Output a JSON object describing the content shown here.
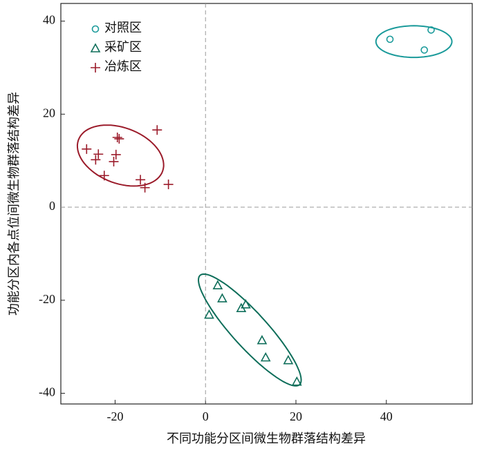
{
  "chart_data": {
    "type": "scatter",
    "x_label": "不同功能分区间微生物群落结构差异",
    "y_label": "功能分区内各点位间微生物群落结构差异",
    "xlim": [
      -32,
      59
    ],
    "ylim": [
      -42.3,
      43.8
    ],
    "xticks": [
      -20,
      0,
      20,
      40
    ],
    "yticks": [
      -40,
      -20,
      0,
      20,
      40
    ],
    "zero_lines": true,
    "legend": "upper left",
    "series": [
      {
        "name": "对照区",
        "color": "#1a9a9a",
        "marker": "circle",
        "x": [
          40.8,
          49.9,
          48.4
        ],
        "values": [
          36.1,
          38.1,
          33.8
        ],
        "ellipse": {
          "cx": 46.1,
          "cy": 35.6,
          "a": 8.4,
          "b": 3.4,
          "angle": 0
        }
      },
      {
        "name": "采矿区",
        "color": "#0e6e5a",
        "marker": "triangle",
        "x": [
          2.7,
          3.7,
          0.8,
          7.9,
          8.9,
          12.5,
          13.3,
          18.3,
          20.2
        ],
        "values": [
          -16.8,
          -19.6,
          -23.1,
          -21.7,
          -20.9,
          -28.6,
          -32.3,
          -32.9,
          -37.5
        ],
        "ellipse": {
          "cx": 9.8,
          "cy": -26.4,
          "a": 16.1,
          "b": 3.8,
          "angle": -46.8
        }
      },
      {
        "name": "冶炼区",
        "color": "#9b1b2a",
        "marker": "plus",
        "x": [
          -26.3,
          -23.7,
          -24.3,
          -19.5,
          -19.1,
          -19.8,
          -20.3,
          -22.4,
          -10.7,
          -14.4,
          -13.4,
          -8.2
        ],
        "values": [
          12.5,
          11.4,
          10.2,
          15.0,
          14.7,
          11.3,
          9.8,
          6.8,
          16.6,
          5.9,
          4.2,
          4.9
        ],
        "ellipse": {
          "cx": -18.8,
          "cy": 11.1,
          "a": 9.9,
          "b": 6.0,
          "angle": -19.5
        }
      }
    ]
  }
}
